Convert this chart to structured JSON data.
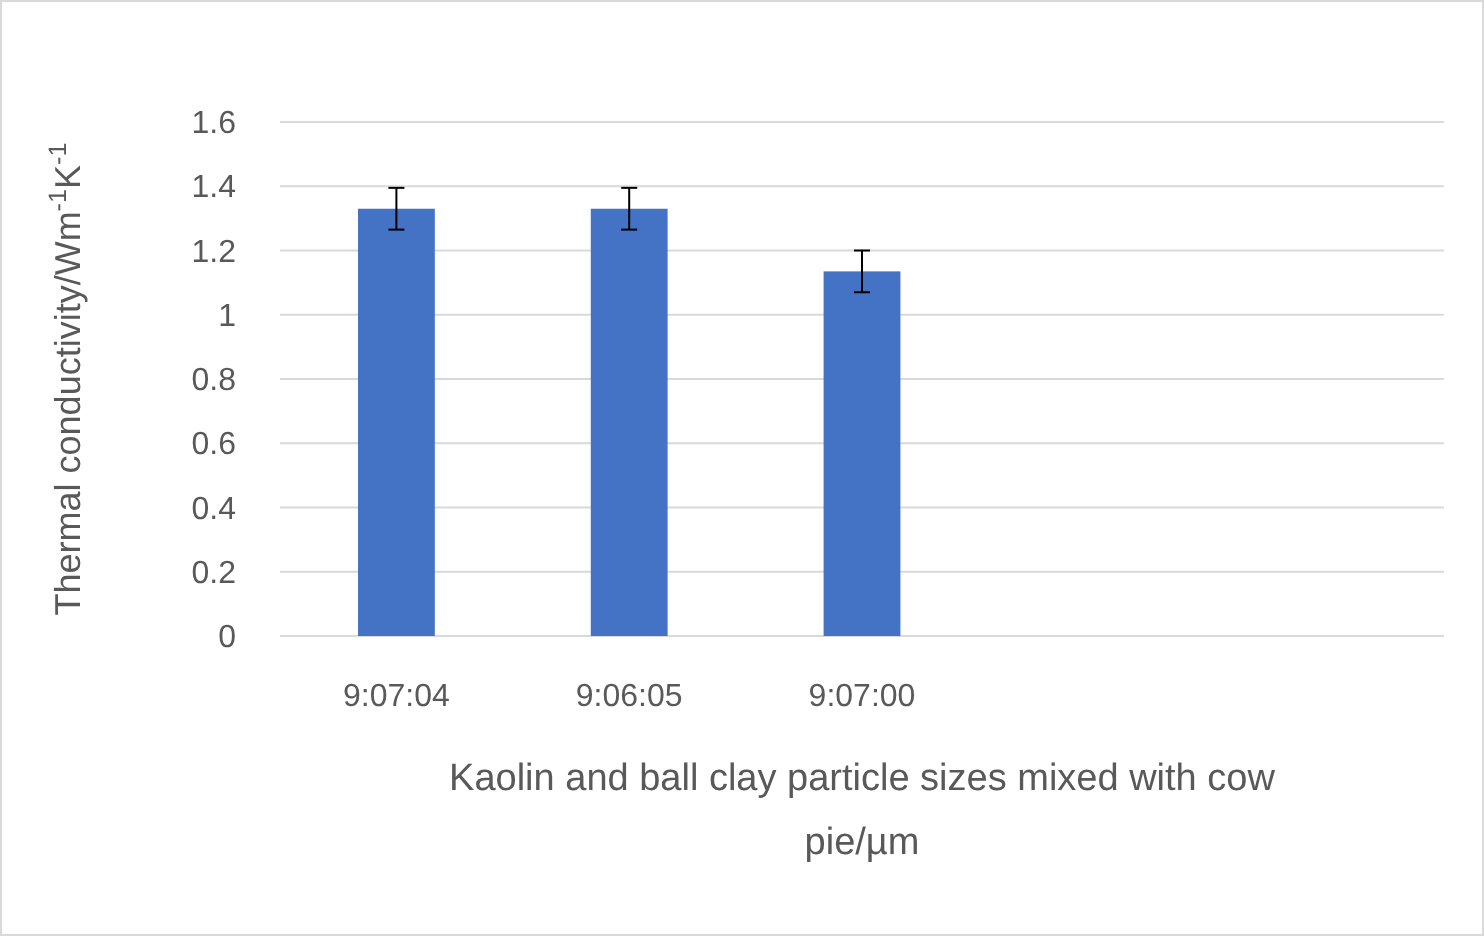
{
  "chart_data": {
    "type": "bar",
    "xlabel": "Kaolin and ball clay particle sizes mixed with cow pie/µm",
    "ylabel": "Thermal conductivity/Wm$^{-1}$K$^{-1}$",
    "categories": [
      "9:07:04",
      "9:06:05",
      "9:07:00",
      null,
      null
    ],
    "values": [
      1.33,
      1.33,
      1.135,
      null,
      null
    ],
    "errors": [
      0.065,
      0.065,
      0.065,
      null,
      null
    ],
    "color": "#4472c4",
    "ylim": [
      0,
      1.6
    ],
    "yticks": [
      0,
      0.2,
      0.4,
      0.6,
      0.8,
      1,
      1.2,
      1.4,
      1.6
    ],
    "grid": "y"
  }
}
